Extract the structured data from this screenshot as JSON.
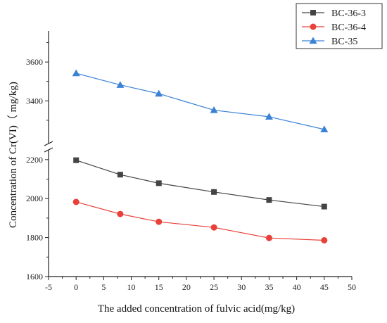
{
  "chart_data": {
    "type": "line",
    "title": "",
    "xlabel": "The added concentration of fulvic acid(mg/kg)",
    "ylabel": "Concentration of Cr(VI)（ mg/kg)",
    "xlim": [
      -5,
      50
    ],
    "x_ticks": [
      -5,
      0,
      5,
      10,
      15,
      20,
      25,
      30,
      35,
      40,
      45,
      50
    ],
    "ylim_lower": [
      1600,
      2250
    ],
    "ylim_upper": [
      3180,
      3760
    ],
    "y_ticks_lower": [
      1600,
      1800,
      2000,
      2200
    ],
    "y_ticks_upper": [
      3400,
      3600
    ],
    "axis_break": true,
    "grid": false,
    "legend_position": "top-right",
    "x": [
      0,
      8,
      15,
      25,
      35,
      45
    ],
    "series": [
      {
        "name": "BC-36-3",
        "color": "#444444",
        "marker": "square",
        "values": [
          2197,
          2123,
          2079,
          2034,
          1993,
          1959
        ]
      },
      {
        "name": "BC-36-4",
        "color": "#e8413a",
        "marker": "circle",
        "values": [
          1983,
          1921,
          1881,
          1852,
          1798,
          1786
        ]
      },
      {
        "name": "BC-35",
        "color": "#3b82d6",
        "marker": "triangle",
        "values": [
          3542,
          3482,
          3437,
          3352,
          3318,
          3253
        ]
      }
    ]
  }
}
